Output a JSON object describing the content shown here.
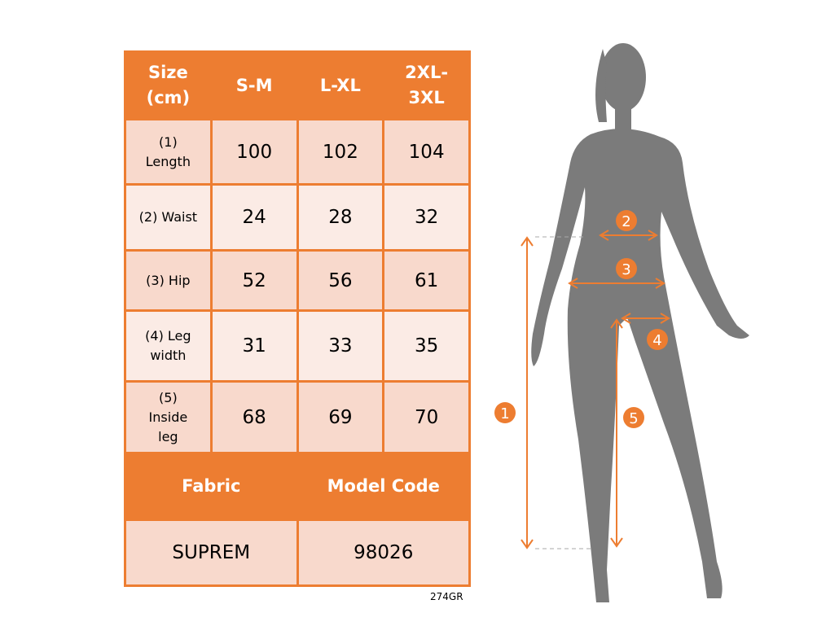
{
  "table": {
    "header": [
      "Size (cm)",
      "S-M",
      "L-XL",
      "2XL-3XL"
    ],
    "rows": [
      {
        "label": "(1) Length",
        "values": [
          "100",
          "102",
          "104"
        ]
      },
      {
        "label": "(2) Waist",
        "values": [
          "24",
          "28",
          "32"
        ]
      },
      {
        "label": "(3) Hip",
        "values": [
          "52",
          "56",
          "61"
        ]
      },
      {
        "label": "(4) Leg width",
        "values": [
          "31",
          "33",
          "35"
        ]
      },
      {
        "label": "(5) Inside leg",
        "values": [
          "68",
          "69",
          "70"
        ]
      }
    ],
    "footer_header": [
      "Fabric",
      "Model Code"
    ],
    "footer_values": [
      "SUPREM",
      "98026"
    ]
  },
  "code": "274GR",
  "figure": {
    "markers": [
      "1",
      "2",
      "3",
      "4",
      "5"
    ]
  },
  "colors": {
    "accent": "#ED7D31",
    "row_dark": "#F8D9CC",
    "row_light": "#FBEBE5",
    "silhouette": "#7B7B7B"
  }
}
